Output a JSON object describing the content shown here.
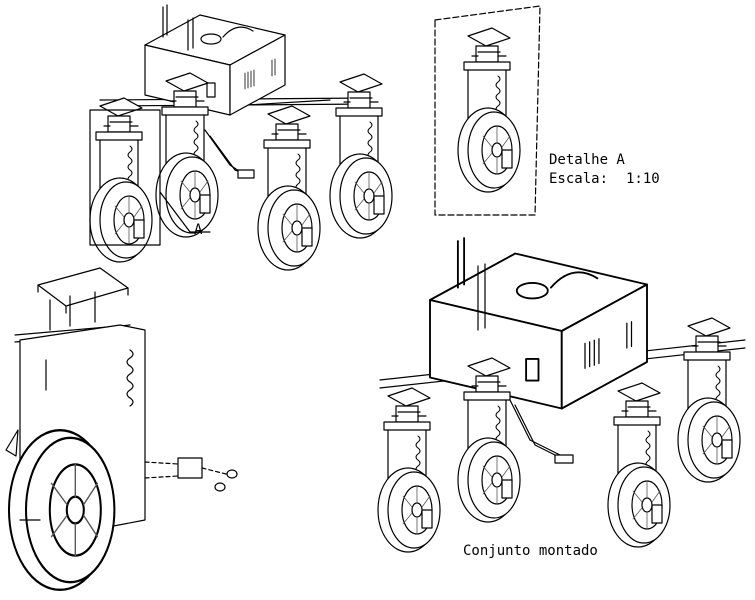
{
  "callout": {
    "letter": "A"
  },
  "detail": {
    "title": "Detalhe A",
    "scale_label": "Escala:",
    "scale_value": "1:10"
  },
  "assembly": {
    "caption": "Conjunto montado"
  },
  "colors": {
    "line": "#000000",
    "background": "#ffffff",
    "fill": "#ffffff",
    "spoke": "#555555"
  }
}
